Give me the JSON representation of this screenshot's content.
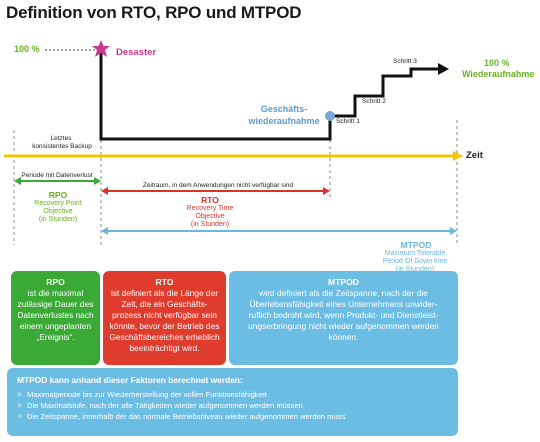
{
  "title": "Definition von RTO, RPO und MTPOD",
  "labels": {
    "pct100_left": "100 %",
    "desaster": "Desaster",
    "pct100_right": "100 %",
    "wiederaufnahme": "Wiederaufnahme",
    "geschaefts1": "Geschäfts-",
    "geschaefts2": "wiederaufnahme",
    "schritt1": "Schritt 1",
    "schritt2": "Schritt 2",
    "schritt3": "Schritt 3",
    "letztes1": "Letztes",
    "letztes2": "konsistentes Backup",
    "zeit": "Zeit",
    "periode": "Periode mit Datenverlust",
    "zeitraum": "Zeitraum, in dem Anwendungen nicht verfügbar sind",
    "rpo_title": "RPO",
    "rpo_1": "Recovery Point",
    "rpo_2": "Objective",
    "rpo_3": "(in Stunden)",
    "rto_title": "RTO",
    "rto_1": "Recovery Time",
    "rto_2": "Objective",
    "rto_3": "(in Stunden)",
    "mtpod_title": "MTPOD",
    "mtpod_1": "Maximum Tolerable",
    "mtpod_2": "Period Of Down time",
    "mtpod_3": "(in Stunden)"
  },
  "boxes": {
    "rpo": {
      "title": "RPO",
      "text": "ist die maximal zulässige Dauer des Datenverlustes nach einem ungeplanten „Ereignis“."
    },
    "rto": {
      "title": "RTO",
      "text": "ist definiert als die Länge der Zeit,  die ein Geschäfts-prozess nicht verfügbar sein könnte, bevor der Betrieb des Geschäftsbereiches erheblich beeinträchtigt wird."
    },
    "mtpod": {
      "title": "MTPOD",
      "text": "wird definiert als die Zeitspanne, nach der die Überlebensfähigkeit eines Unternehmens unwider-ruflich bedroht wird, wenn Produkt- und Dienstleist-ungserbringung nicht wieder aufgenommen werden können."
    }
  },
  "factors": {
    "heading": "MTPOD kann anhand dieser Faktoren berechnet werden:",
    "items": [
      "Maximalperiode bis zur Wiederherstellung der vollen Funktionsfähigkeit",
      "Die Maximalstufe, nach der alle Tätigkeiten wieder aufgenommen werden müssen",
      "Die Zeitspanne, innerhalb der das normale Betriebsniveau wieder aufgenommen werden muss"
    ]
  },
  "colors": {
    "green": "#6ab023",
    "pink": "#c83a8c",
    "blue": "#5b9bd5",
    "red": "#d9342b",
    "lightblue": "#6ab8e0",
    "yellow": "#f5c400",
    "rpo_box": "#3aa935",
    "rto_box": "#e03c2e",
    "mtpod_box": "#6cbde4"
  }
}
